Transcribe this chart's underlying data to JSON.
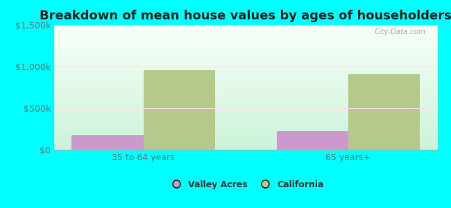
{
  "title": "Breakdown of mean house values by ages of householders",
  "categories": [
    "35 to 64 years",
    "65 years+"
  ],
  "valley_acres_values": [
    175000,
    225000
  ],
  "california_values": [
    962000,
    912000
  ],
  "ylim": [
    0,
    1500000
  ],
  "yticks": [
    0,
    500000,
    1000000,
    1500000
  ],
  "ytick_labels": [
    "$0",
    "$500k",
    "$1,000k",
    "$1,500k"
  ],
  "valley_acres_color": "#cc99cc",
  "california_color": "#b5c98a",
  "background_color": "#00ffff",
  "bar_width": 0.35,
  "legend_labels": [
    "Valley Acres",
    "California"
  ],
  "watermark": "City-Data.com",
  "title_fontsize": 13,
  "tick_fontsize": 9,
  "legend_fontsize": 9
}
